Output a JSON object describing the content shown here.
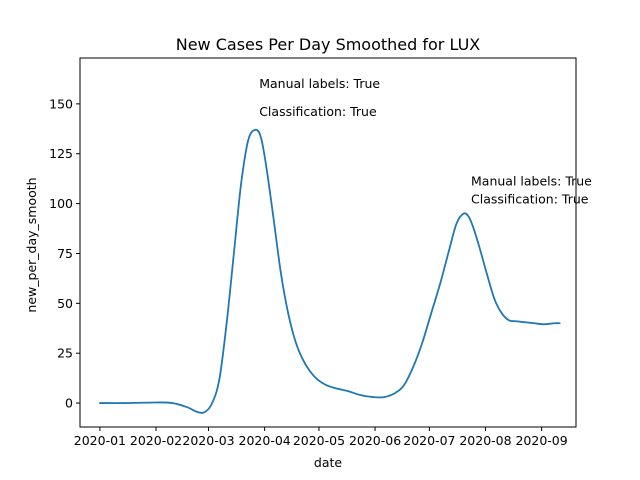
{
  "chart_data": {
    "type": "line",
    "title": "New Cases Per Day Smoothed for LUX",
    "xlabel": "date",
    "ylabel": "new_per_day_smooth",
    "xlim": [
      "2019-12-21",
      "2020-09-20"
    ],
    "ylim": [
      -12,
      173
    ],
    "x_ticks": [
      "2020-01-01",
      "2020-02-01",
      "2020-03-01",
      "2020-04-01",
      "2020-05-01",
      "2020-06-01",
      "2020-07-01",
      "2020-08-01",
      "2020-09-01"
    ],
    "x_tick_labels": [
      "2020-01",
      "2020-02",
      "2020-03",
      "2020-04",
      "2020-05",
      "2020-06",
      "2020-07",
      "2020-08",
      "2020-09"
    ],
    "y_ticks": [
      0,
      25,
      50,
      75,
      100,
      125,
      150
    ],
    "y_tick_labels": [
      "0",
      "25",
      "50",
      "75",
      "100",
      "125",
      "150"
    ],
    "grid": false,
    "line_color": "#1f77b4",
    "series": [
      {
        "x": [
          "2020-01-01",
          "2020-01-15",
          "2020-02-01",
          "2020-02-10",
          "2020-02-18",
          "2020-02-24",
          "2020-02-28",
          "2020-03-03",
          "2020-03-07",
          "2020-03-11",
          "2020-03-15",
          "2020-03-19",
          "2020-03-23",
          "2020-03-27",
          "2020-03-30",
          "2020-04-02",
          "2020-04-06",
          "2020-04-10",
          "2020-04-14",
          "2020-04-18",
          "2020-04-22",
          "2020-04-26",
          "2020-04-30",
          "2020-05-05",
          "2020-05-10",
          "2020-05-17",
          "2020-05-24",
          "2020-05-31",
          "2020-06-06",
          "2020-06-12",
          "2020-06-17",
          "2020-06-22",
          "2020-06-27",
          "2020-07-02",
          "2020-07-07",
          "2020-07-12",
          "2020-07-16",
          "2020-07-20",
          "2020-07-23",
          "2020-07-26",
          "2020-07-29",
          "2020-08-02",
          "2020-08-06",
          "2020-08-10",
          "2020-08-14",
          "2020-08-18",
          "2020-08-23",
          "2020-08-28",
          "2020-09-02",
          "2020-09-08",
          "2020-09-11"
        ],
        "y": [
          0,
          0,
          0.3,
          0,
          -2,
          -4.5,
          -4.5,
          0,
          12,
          40,
          75,
          110,
          132,
          137,
          133,
          118,
          92,
          65,
          45,
          31,
          22,
          16,
          12,
          9,
          7.5,
          6,
          4,
          3,
          3,
          5,
          9,
          18,
          30,
          45,
          60,
          77,
          90,
          95,
          93,
          86,
          77,
          64,
          52,
          45,
          41.5,
          41,
          40.5,
          40,
          39.5,
          40,
          40
        ]
      }
    ],
    "annotations": [
      {
        "lines": [
          "Manual labels: True",
          "Classification: True"
        ],
        "x": "2020-03-29",
        "y": [
          158,
          144
        ]
      },
      {
        "lines": [
          "Manual labels: True",
          "Classification: True"
        ],
        "x": "2020-07-24",
        "y": [
          109,
          100
        ]
      }
    ]
  }
}
